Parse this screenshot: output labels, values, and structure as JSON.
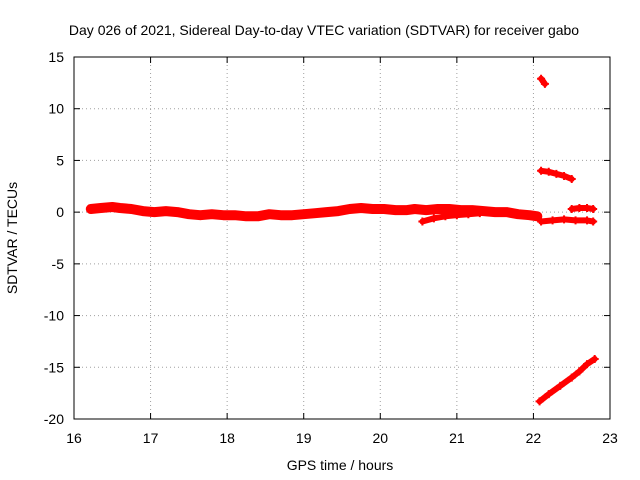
{
  "chart_data": {
    "type": "scatter",
    "title": "Day 026 of 2021, Sidereal Day-to-day VTEC variation (SDTVAR) for receiver gabo",
    "xlabel": "GPS time / hours",
    "ylabel": "SDTVAR / TECUs",
    "xlim": [
      16,
      23
    ],
    "ylim": [
      -20,
      15
    ],
    "x_ticks": [
      "16",
      "17",
      "18",
      "19",
      "20",
      "21",
      "22",
      "23"
    ],
    "y_ticks": [
      "-20",
      "-15",
      "-10",
      "-5",
      "0",
      "5",
      "10",
      "15"
    ],
    "grid": true,
    "marker_color": "#ff0000",
    "series": [
      {
        "name": "main-band",
        "x": [
          16.22,
          16.35,
          16.5,
          16.6,
          16.75,
          16.9,
          17.05,
          17.2,
          17.35,
          17.5,
          17.65,
          17.8,
          17.95,
          18.1,
          18.25,
          18.4,
          18.55,
          18.7,
          18.85,
          19.0,
          19.15,
          19.3,
          19.45,
          19.6,
          19.75,
          19.9,
          20.05,
          20.2,
          20.35,
          20.45,
          20.6,
          20.75,
          20.9,
          21.05,
          21.2,
          21.35,
          21.5,
          21.65,
          21.8,
          21.95,
          22.05
        ],
        "y": [
          0.3,
          0.4,
          0.5,
          0.4,
          0.3,
          0.1,
          0.0,
          0.1,
          0.0,
          -0.2,
          -0.3,
          -0.2,
          -0.3,
          -0.3,
          -0.4,
          -0.4,
          -0.2,
          -0.3,
          -0.3,
          -0.2,
          -0.1,
          0.0,
          0.1,
          0.3,
          0.4,
          0.3,
          0.3,
          0.2,
          0.2,
          0.3,
          0.2,
          0.3,
          0.3,
          0.2,
          0.2,
          0.1,
          0.0,
          0.0,
          -0.2,
          -0.3,
          -0.4
        ]
      },
      {
        "name": "lower-branch",
        "x": [
          20.55,
          20.7,
          20.85,
          21.0,
          21.15,
          21.3
        ],
        "y": [
          -0.9,
          -0.6,
          -0.4,
          -0.3,
          -0.2,
          -0.1
        ]
      },
      {
        "name": "after-22-low",
        "x": [
          22.1,
          22.25,
          22.4,
          22.55,
          22.7,
          22.78
        ],
        "y": [
          -0.9,
          -0.8,
          -0.7,
          -0.8,
          -0.8,
          -0.9
        ]
      },
      {
        "name": "after-22-high",
        "x": [
          22.5,
          22.6,
          22.7,
          22.78
        ],
        "y": [
          0.3,
          0.4,
          0.4,
          0.3
        ]
      },
      {
        "name": "descending-arc",
        "x": [
          22.1,
          22.2,
          22.3,
          22.4,
          22.5
        ],
        "y": [
          4.0,
          3.9,
          3.7,
          3.5,
          3.2
        ]
      },
      {
        "name": "high-cluster",
        "x": [
          22.1,
          22.15
        ],
        "y": [
          12.9,
          12.4
        ]
      },
      {
        "name": "rising-arc",
        "x": [
          22.08,
          22.2,
          22.35,
          22.5,
          22.6,
          22.7,
          22.8
        ],
        "y": [
          -18.3,
          -17.6,
          -16.8,
          -16.0,
          -15.4,
          -14.7,
          -14.2
        ]
      }
    ]
  }
}
